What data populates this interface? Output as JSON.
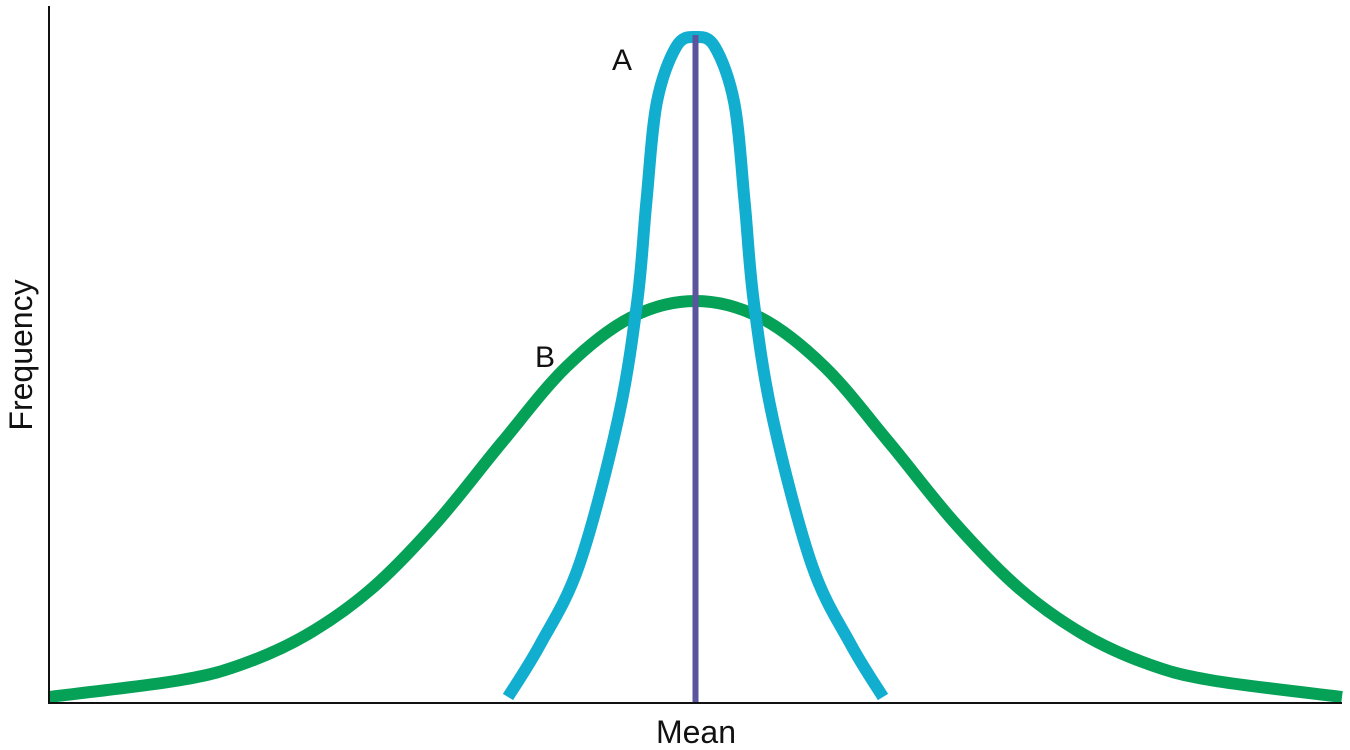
{
  "chart_data": {
    "type": "line",
    "title": "",
    "xlabel": "Mean",
    "ylabel": "Frequency",
    "axis_ticks": "none",
    "grid": false,
    "xlim": [
      -5,
      5
    ],
    "ylim": [
      0,
      1
    ],
    "mean_line": {
      "x": 0,
      "color": "#5a559c"
    },
    "series": [
      {
        "name": "A",
        "color": "#12aed0",
        "x": [
          -1.45,
          -1.2,
          -0.9,
          -0.6,
          -0.45,
          -0.38,
          -0.3,
          -0.15,
          0,
          0.15,
          0.3,
          0.38,
          0.45,
          0.6,
          0.9,
          1.2,
          1.45
        ],
        "y": [
          0.0,
          0.08,
          0.2,
          0.42,
          0.6,
          0.75,
          0.9,
          0.985,
          1.0,
          0.985,
          0.9,
          0.75,
          0.6,
          0.42,
          0.2,
          0.08,
          0.0
        ]
      },
      {
        "name": "B",
        "color": "#05a157",
        "x": [
          -5,
          -4,
          -3.5,
          -3,
          -2.5,
          -2,
          -1.5,
          -1,
          -0.5,
          0,
          0.5,
          1,
          1.5,
          2,
          2.5,
          3,
          3.5,
          4,
          5
        ],
        "y": [
          0.0,
          0.025,
          0.05,
          0.095,
          0.165,
          0.265,
          0.385,
          0.5,
          0.575,
          0.6,
          0.575,
          0.5,
          0.385,
          0.265,
          0.165,
          0.095,
          0.05,
          0.025,
          0.0
        ]
      }
    ]
  }
}
